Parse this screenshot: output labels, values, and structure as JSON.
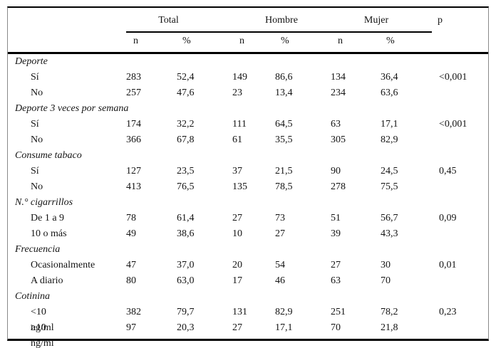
{
  "colors": {
    "rule": "#000000",
    "side_border": "#8a8a8a",
    "text": "#141414",
    "background": "#ffffff"
  },
  "table": {
    "groups": [
      {
        "label": "Total"
      },
      {
        "label": "Hombre"
      },
      {
        "label": "Mujer"
      }
    ],
    "p_header": "p",
    "subheaders": [
      "n",
      "%",
      "n",
      "%",
      "n",
      "%"
    ],
    "sections": [
      {
        "title": "Deporte",
        "rows": [
          {
            "label": "Sí",
            "unit": "",
            "cells": [
              "283",
              "52,4",
              "149",
              "86,6",
              "134",
              "36,4"
            ],
            "p": "<0,001"
          },
          {
            "label": "No",
            "unit": "",
            "cells": [
              "257",
              "47,6",
              "23",
              "13,4",
              "234",
              "63,6"
            ],
            "p": ""
          }
        ]
      },
      {
        "title": "Deporte 3 veces por semana",
        "rows": [
          {
            "label": "Sí",
            "unit": "",
            "cells": [
              "174",
              "32,2",
              "111",
              "64,5",
              "63",
              "17,1"
            ],
            "p": "<0,001"
          },
          {
            "label": "No",
            "unit": "",
            "cells": [
              "366",
              "67,8",
              "61",
              "35,5",
              "305",
              "82,9"
            ],
            "p": ""
          }
        ]
      },
      {
        "title": "Consume tabaco",
        "rows": [
          {
            "label": "Sí",
            "unit": "",
            "cells": [
              "127",
              "23,5",
              "37",
              "21,5",
              "90",
              "24,5"
            ],
            "p": "0,45"
          },
          {
            "label": "No",
            "unit": "",
            "cells": [
              "413",
              "76,5",
              "135",
              "78,5",
              "278",
              "75,5"
            ],
            "p": ""
          }
        ]
      },
      {
        "title": "N.° cigarrillos",
        "rows": [
          {
            "label": "De 1 a 9",
            "unit": "",
            "cells": [
              "78",
              "61,4",
              "27",
              "73",
              "51",
              "56,7"
            ],
            "p": "0,09"
          },
          {
            "label": "10 o más",
            "unit": "",
            "cells": [
              "49",
              "38,6",
              "10",
              "27",
              "39",
              "43,3"
            ],
            "p": ""
          }
        ]
      },
      {
        "title": "Frecuencia",
        "rows": [
          {
            "label": "Ocasionalmente",
            "unit": "",
            "cells": [
              "47",
              "37,0",
              "20",
              "54",
              "27",
              "30"
            ],
            "p": "0,01"
          },
          {
            "label": "A diario",
            "unit": "",
            "cells": [
              "80",
              "63,0",
              "17",
              "46",
              "63",
              "70"
            ],
            "p": ""
          }
        ]
      },
      {
        "title": "Cotinina",
        "rows": [
          {
            "label": "<10",
            "unit": "ng/ml",
            "cells": [
              "382",
              "79,7",
              "131",
              "82,9",
              "251",
              "78,2"
            ],
            "p": "0,23"
          },
          {
            "label": "≥10",
            "unit": "ng/ml",
            "cells": [
              "97",
              "20,3",
              "27",
              "17,1",
              "70",
              "21,8"
            ],
            "p": ""
          }
        ]
      }
    ]
  }
}
